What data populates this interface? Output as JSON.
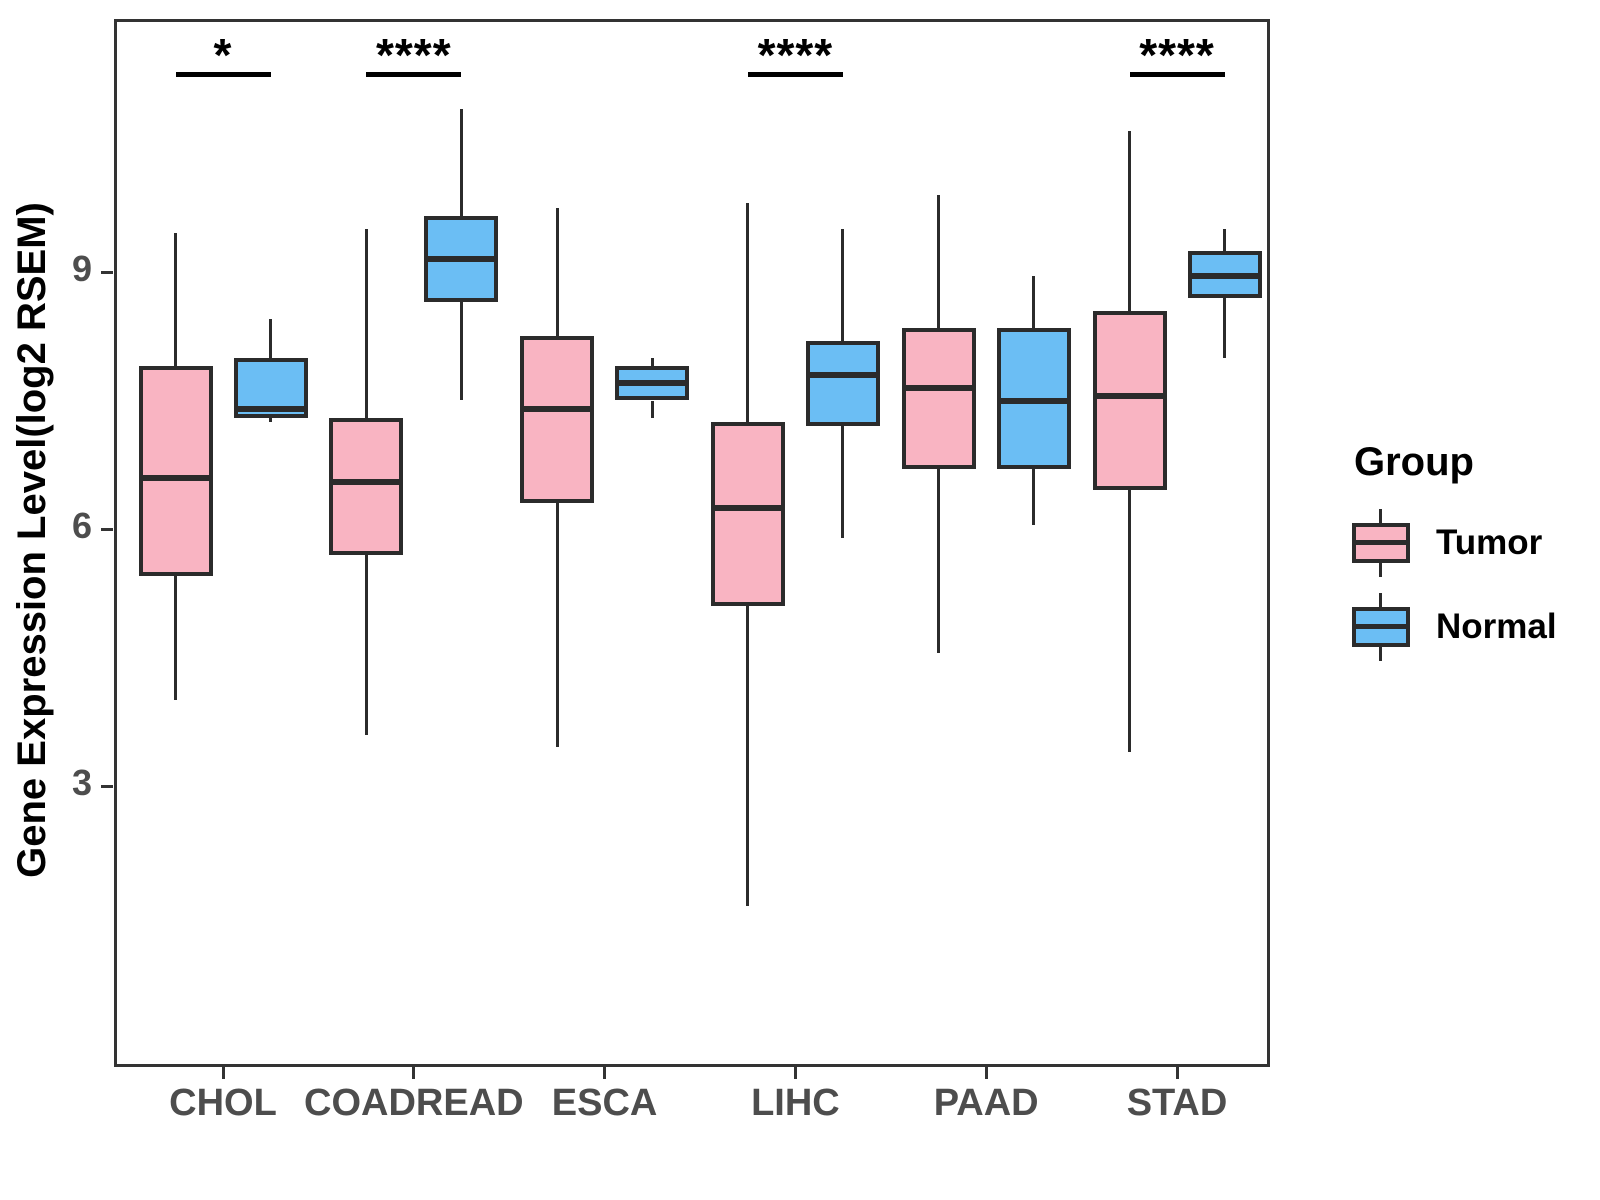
{
  "chart_data": {
    "type": "grouped_boxplot",
    "title": "",
    "xlabel": "",
    "ylabel": "Gene Expression Level(log2 RSEM)",
    "categories": [
      "CHOL",
      "COADREAD",
      "ESCA",
      "LIHC",
      "PAAD",
      "STAD"
    ],
    "y_ticks": [
      3,
      6,
      9
    ],
    "y_range_shown": [
      -0.3,
      11.95
    ],
    "grid": false,
    "legend": {
      "title": "Group",
      "position": "right"
    },
    "colors": {
      "tumor_fill": "#F9B4C2",
      "normal_fill": "#6BBEF4",
      "box_outline": "#2b2b2b",
      "panel_border": "#333333",
      "tick_label": "#4d4d4d"
    },
    "series": [
      {
        "name": "Tumor",
        "color": "#F9B4C2",
        "boxes": [
          {
            "category": "CHOL",
            "min": 4.0,
            "q1": 5.45,
            "median": 6.6,
            "q3": 7.9,
            "max": 9.45
          },
          {
            "category": "COADREAD",
            "min": 3.6,
            "q1": 5.7,
            "median": 6.55,
            "q3": 7.3,
            "max": 9.5
          },
          {
            "category": "ESCA",
            "min": 3.45,
            "q1": 6.3,
            "median": 7.4,
            "q3": 8.25,
            "max": 9.75
          },
          {
            "category": "LIHC",
            "min": 1.6,
            "q1": 5.1,
            "median": 6.25,
            "q3": 7.25,
            "max": 9.8
          },
          {
            "category": "PAAD",
            "min": 4.55,
            "q1": 6.7,
            "median": 7.65,
            "q3": 8.35,
            "max": 9.9
          },
          {
            "category": "STAD",
            "min": 3.4,
            "q1": 6.45,
            "median": 7.55,
            "q3": 8.55,
            "max": 10.65
          }
        ]
      },
      {
        "name": "Normal",
        "color": "#6BBEF4",
        "boxes": [
          {
            "category": "CHOL",
            "min": 7.25,
            "q1": 7.3,
            "median": 7.4,
            "q3": 8.0,
            "max": 8.45
          },
          {
            "category": "COADREAD",
            "min": 7.5,
            "q1": 8.65,
            "median": 9.15,
            "q3": 9.65,
            "max": 10.9
          },
          {
            "category": "ESCA",
            "min": 7.3,
            "q1": 7.5,
            "median": 7.7,
            "q3": 7.9,
            "max": 8.0
          },
          {
            "category": "LIHC",
            "min": 5.9,
            "q1": 7.2,
            "median": 7.8,
            "q3": 8.2,
            "max": 9.5
          },
          {
            "category": "PAAD",
            "min": 6.05,
            "q1": 6.7,
            "median": 7.5,
            "q3": 8.35,
            "max": 8.95
          },
          {
            "category": "STAD",
            "min": 8.0,
            "q1": 8.7,
            "median": 8.95,
            "q3": 9.25,
            "max": 9.5
          }
        ]
      }
    ],
    "significance": [
      {
        "category": "CHOL",
        "label": "*"
      },
      {
        "category": "COADREAD",
        "label": "****"
      },
      {
        "category": "LIHC",
        "label": "****"
      },
      {
        "category": "STAD",
        "label": "****"
      }
    ]
  }
}
